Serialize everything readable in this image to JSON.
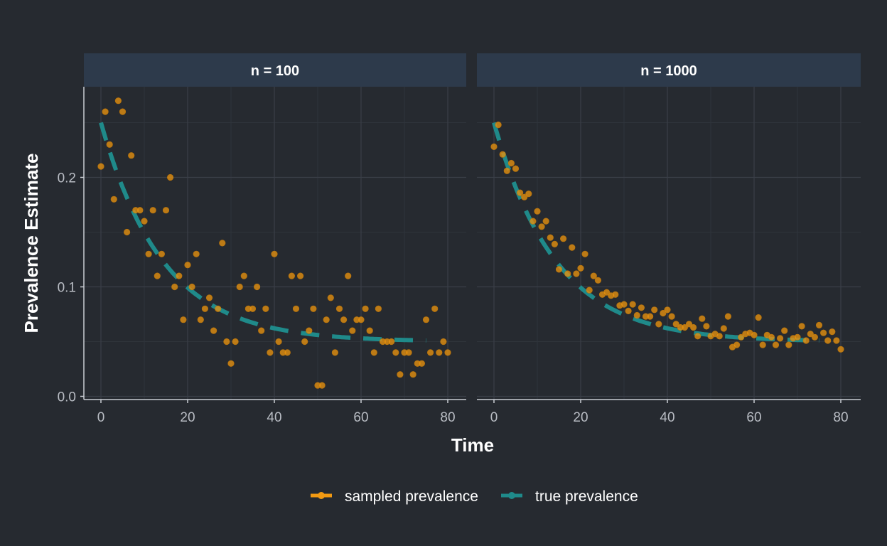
{
  "chart_data": {
    "type": "scatter",
    "xlabel": "Time",
    "ylabel": "Prevalence Estimate",
    "xlim": [
      -4,
      84
    ],
    "ylim": [
      -0.005,
      0.28
    ],
    "x_ticks": [
      0,
      20,
      40,
      60,
      80
    ],
    "y_ticks": [
      0.0,
      0.1,
      0.2
    ],
    "y_tick_labels": [
      "0.0",
      "0.1",
      "0.2"
    ],
    "grid": true,
    "legend_position": "bottom",
    "legend": [
      {
        "label": "sampled prevalence",
        "color": "#e8920f"
      },
      {
        "label": "true prevalence",
        "color": "#1f8a8a"
      }
    ],
    "true_prevalence_curve": {
      "start": 0.25,
      "plateau": 0.05,
      "rate": 0.07,
      "x_range": [
        0,
        75
      ]
    },
    "panels": [
      {
        "title": "n = 100",
        "sampled": [
          [
            0,
            0.21
          ],
          [
            1,
            0.26
          ],
          [
            2,
            0.23
          ],
          [
            3,
            0.18
          ],
          [
            4,
            0.27
          ],
          [
            5,
            0.26
          ],
          [
            6,
            0.15
          ],
          [
            7,
            0.22
          ],
          [
            8,
            0.17
          ],
          [
            9,
            0.17
          ],
          [
            10,
            0.16
          ],
          [
            11,
            0.13
          ],
          [
            12,
            0.17
          ],
          [
            13,
            0.11
          ],
          [
            14,
            0.13
          ],
          [
            15,
            0.17
          ],
          [
            16,
            0.2
          ],
          [
            17,
            0.1
          ],
          [
            18,
            0.11
          ],
          [
            19,
            0.07
          ],
          [
            20,
            0.12
          ],
          [
            21,
            0.1
          ],
          [
            22,
            0.13
          ],
          [
            23,
            0.07
          ],
          [
            24,
            0.08
          ],
          [
            25,
            0.09
          ],
          [
            26,
            0.06
          ],
          [
            27,
            0.08
          ],
          [
            28,
            0.14
          ],
          [
            29,
            0.05
          ],
          [
            30,
            0.03
          ],
          [
            31,
            0.05
          ],
          [
            32,
            0.1
          ],
          [
            33,
            0.11
          ],
          [
            34,
            0.08
          ],
          [
            35,
            0.08
          ],
          [
            36,
            0.1
          ],
          [
            37,
            0.06
          ],
          [
            38,
            0.08
          ],
          [
            39,
            0.04
          ],
          [
            40,
            0.13
          ],
          [
            41,
            0.05
          ],
          [
            42,
            0.04
          ],
          [
            43,
            0.04
          ],
          [
            44,
            0.11
          ],
          [
            45,
            0.08
          ],
          [
            46,
            0.11
          ],
          [
            47,
            0.05
          ],
          [
            48,
            0.06
          ],
          [
            49,
            0.08
          ],
          [
            50,
            0.01
          ],
          [
            51,
            0.01
          ],
          [
            52,
            0.07
          ],
          [
            53,
            0.09
          ],
          [
            54,
            0.04
          ],
          [
            55,
            0.08
          ],
          [
            56,
            0.07
          ],
          [
            57,
            0.11
          ],
          [
            58,
            0.06
          ],
          [
            59,
            0.07
          ],
          [
            60,
            0.07
          ],
          [
            61,
            0.08
          ],
          [
            62,
            0.06
          ],
          [
            63,
            0.04
          ],
          [
            64,
            0.08
          ],
          [
            65,
            0.05
          ],
          [
            66,
            0.05
          ],
          [
            67,
            0.05
          ],
          [
            68,
            0.04
          ],
          [
            69,
            0.02
          ],
          [
            70,
            0.04
          ],
          [
            71,
            0.04
          ],
          [
            72,
            0.02
          ],
          [
            73,
            0.03
          ],
          [
            74,
            0.03
          ],
          [
            75,
            0.07
          ],
          [
            76,
            0.04
          ],
          [
            77,
            0.08
          ],
          [
            78,
            0.04
          ],
          [
            79,
            0.05
          ],
          [
            80,
            0.04
          ]
        ]
      },
      {
        "title": "n = 1000",
        "sampled": [
          [
            0,
            0.228
          ],
          [
            1,
            0.248
          ],
          [
            2,
            0.221
          ],
          [
            3,
            0.206
          ],
          [
            4,
            0.213
          ],
          [
            5,
            0.208
          ],
          [
            6,
            0.186
          ],
          [
            7,
            0.182
          ],
          [
            8,
            0.185
          ],
          [
            9,
            0.16
          ],
          [
            10,
            0.169
          ],
          [
            11,
            0.155
          ],
          [
            12,
            0.16
          ],
          [
            13,
            0.145
          ],
          [
            14,
            0.139
          ],
          [
            15,
            0.116
          ],
          [
            16,
            0.144
          ],
          [
            17,
            0.112
          ],
          [
            18,
            0.136
          ],
          [
            19,
            0.112
          ],
          [
            20,
            0.117
          ],
          [
            21,
            0.13
          ],
          [
            22,
            0.097
          ],
          [
            23,
            0.11
          ],
          [
            24,
            0.106
          ],
          [
            25,
            0.093
          ],
          [
            26,
            0.095
          ],
          [
            27,
            0.092
          ],
          [
            28,
            0.093
          ],
          [
            29,
            0.083
          ],
          [
            30,
            0.084
          ],
          [
            31,
            0.078
          ],
          [
            32,
            0.084
          ],
          [
            33,
            0.074
          ],
          [
            34,
            0.081
          ],
          [
            35,
            0.073
          ],
          [
            36,
            0.073
          ],
          [
            37,
            0.079
          ],
          [
            38,
            0.066
          ],
          [
            39,
            0.076
          ],
          [
            40,
            0.079
          ],
          [
            41,
            0.073
          ],
          [
            42,
            0.066
          ],
          [
            43,
            0.063
          ],
          [
            44,
            0.063
          ],
          [
            45,
            0.066
          ],
          [
            46,
            0.063
          ],
          [
            47,
            0.055
          ],
          [
            48,
            0.071
          ],
          [
            49,
            0.064
          ],
          [
            50,
            0.055
          ],
          [
            51,
            0.057
          ],
          [
            52,
            0.055
          ],
          [
            53,
            0.062
          ],
          [
            54,
            0.073
          ],
          [
            55,
            0.045
          ],
          [
            56,
            0.047
          ],
          [
            57,
            0.054
          ],
          [
            58,
            0.057
          ],
          [
            59,
            0.058
          ],
          [
            60,
            0.056
          ],
          [
            61,
            0.072
          ],
          [
            62,
            0.047
          ],
          [
            63,
            0.056
          ],
          [
            64,
            0.054
          ],
          [
            65,
            0.047
          ],
          [
            66,
            0.053
          ],
          [
            67,
            0.06
          ],
          [
            68,
            0.047
          ],
          [
            69,
            0.053
          ],
          [
            70,
            0.054
          ],
          [
            71,
            0.064
          ],
          [
            72,
            0.051
          ],
          [
            73,
            0.057
          ],
          [
            74,
            0.054
          ],
          [
            75,
            0.065
          ],
          [
            76,
            0.058
          ],
          [
            77,
            0.051
          ],
          [
            78,
            0.059
          ],
          [
            79,
            0.051
          ],
          [
            80,
            0.043
          ]
        ]
      }
    ]
  }
}
